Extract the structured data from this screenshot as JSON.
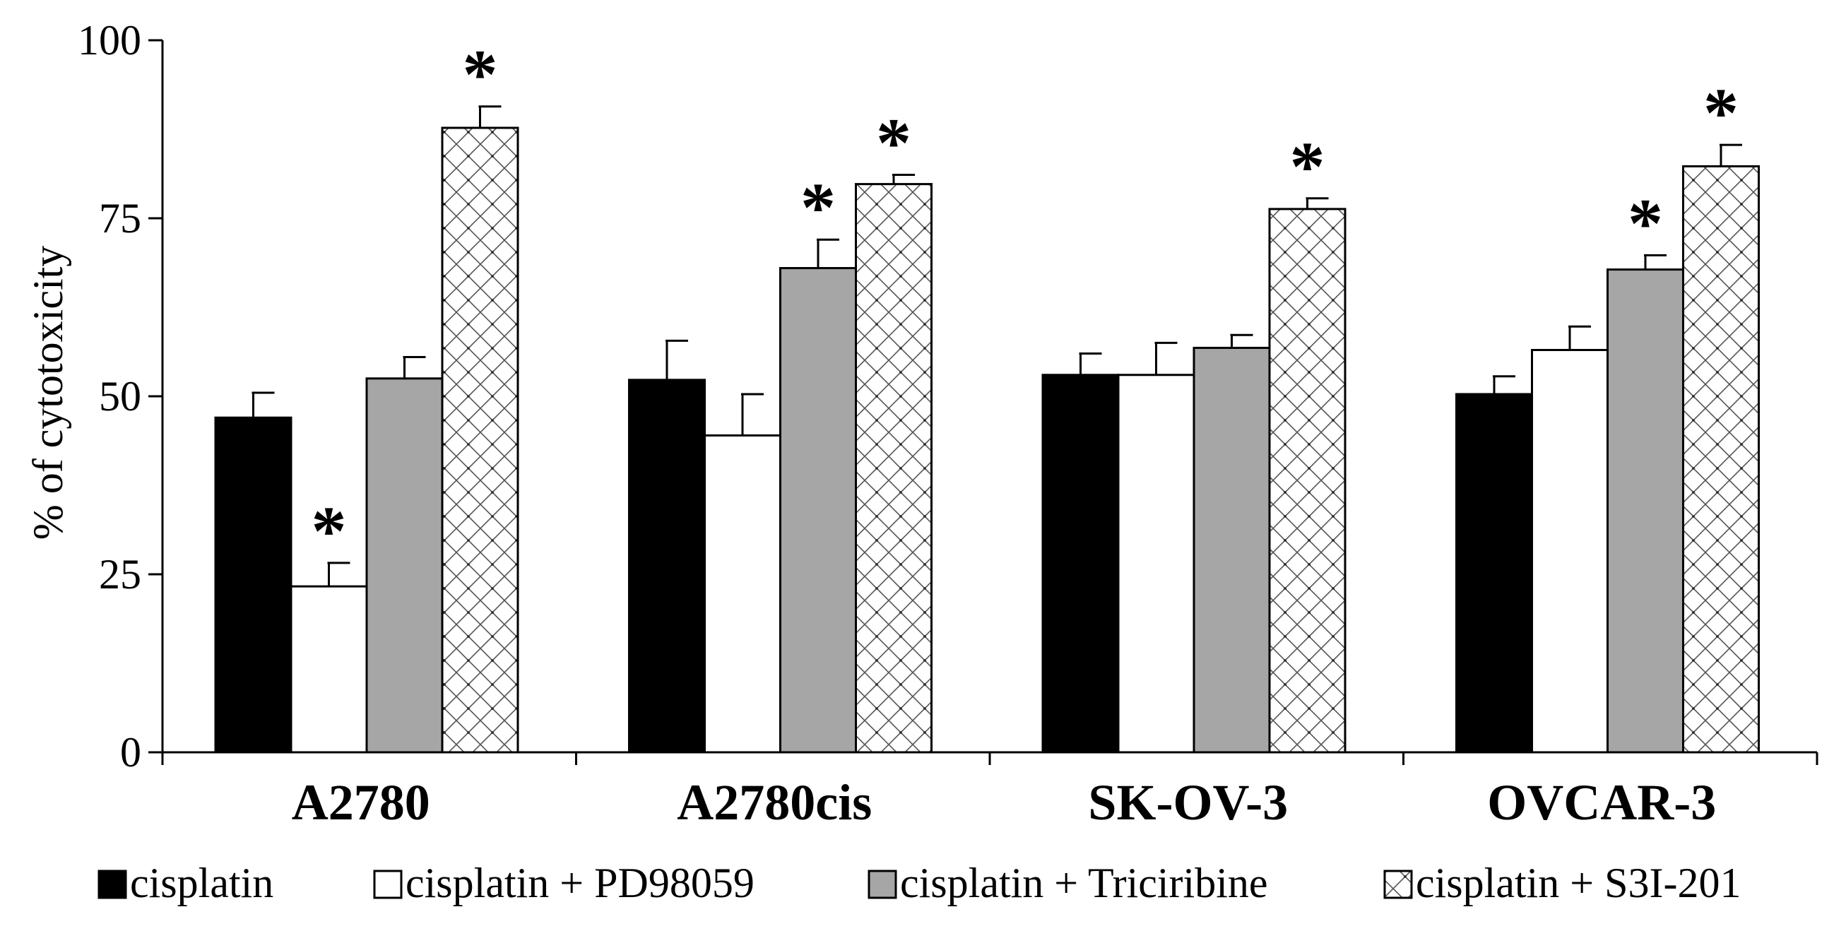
{
  "chart_data": {
    "type": "bar",
    "title": "",
    "xlabel": "",
    "ylabel": "% of cytotoxicity",
    "ylim": [
      0,
      100
    ],
    "yticks": [
      0,
      25,
      50,
      75,
      100
    ],
    "ytick_labels": [
      "0",
      "25",
      "50",
      "75",
      "100"
    ],
    "grid": false,
    "legend_position": "bottom",
    "significance_marker": "*",
    "categories": [
      "A2780",
      "A2780cis",
      "SK-OV-3",
      "OVCAR-3"
    ],
    "series": [
      {
        "name": "cisplatin",
        "fill": "solid",
        "color": "#000000",
        "values": [
          47,
          52.3,
          53,
          50.3
        ],
        "errors": [
          3.5,
          5.5,
          3,
          2.5
        ],
        "significant": [
          false,
          false,
          false,
          false
        ]
      },
      {
        "name": "cisplatin + PD98059",
        "fill": "solid",
        "color": "#ffffff",
        "values": [
          23.3,
          44.5,
          53,
          56.5
        ],
        "errors": [
          3.3,
          5.8,
          4.5,
          3.3
        ],
        "significant": [
          true,
          false,
          false,
          false
        ]
      },
      {
        "name": "cisplatin + Triciribine",
        "fill": "solid",
        "color": "#a6a6a6",
        "values": [
          52.5,
          68,
          56.8,
          67.8
        ],
        "errors": [
          3,
          4,
          1.8,
          2
        ],
        "significant": [
          false,
          true,
          false,
          true
        ]
      },
      {
        "name": "cisplatin + S3I-201",
        "fill": "crosshatch",
        "color": "#ffffff",
        "values": [
          87.7,
          79.8,
          76.3,
          82.3
        ],
        "errors": [
          3,
          1.3,
          1.5,
          3
        ],
        "significant": [
          true,
          true,
          true,
          true
        ]
      }
    ]
  }
}
